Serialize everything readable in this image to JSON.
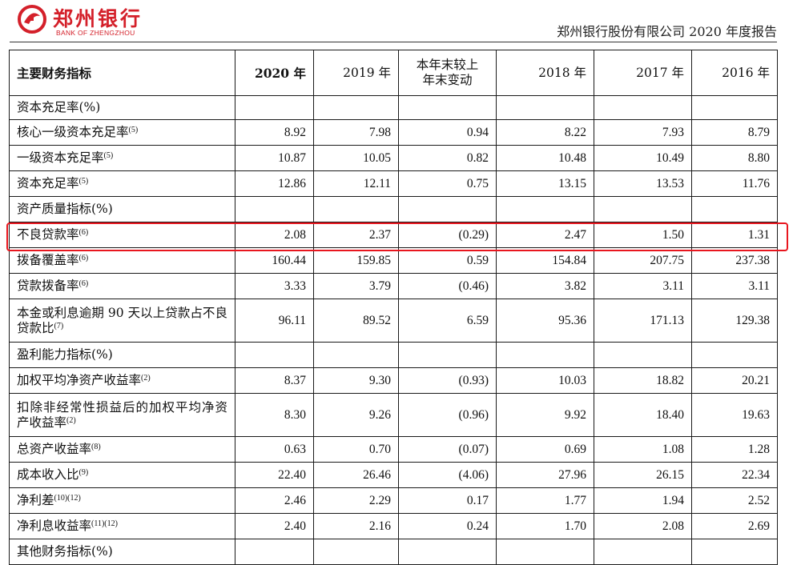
{
  "header": {
    "bank_name_cn": "郑州银行",
    "bank_name_en": "BANK OF ZHENGZHOU",
    "report_title": "郑州银行股份有限公司 2020 年度报告"
  },
  "table": {
    "columns": [
      "主要财务指标",
      "2020 年",
      "2019 年",
      "本年末较上年末变动",
      "2018 年",
      "2017 年",
      "2016 年"
    ],
    "change_col_line1": "本年末较上",
    "change_col_line2": "年末变动",
    "sections": [
      {
        "title": "资本充足率(%)",
        "rows": [
          {
            "label": "核心一级资本充足率",
            "note": "(5)",
            "values": [
              "8.92",
              "7.98",
              "0.94",
              "8.22",
              "7.93",
              "8.79"
            ]
          },
          {
            "label": "一级资本充足率",
            "note": "(5)",
            "values": [
              "10.87",
              "10.05",
              "0.82",
              "10.48",
              "10.49",
              "8.80"
            ]
          },
          {
            "label": "资本充足率",
            "note": "(5)",
            "values": [
              "12.86",
              "12.11",
              "0.75",
              "13.15",
              "13.53",
              "11.76"
            ]
          }
        ]
      },
      {
        "title": "资产质量指标(%)",
        "rows": [
          {
            "label": "不良贷款率",
            "note": "(6)",
            "values": [
              "2.08",
              "2.37",
              "(0.29)",
              "2.47",
              "1.50",
              "1.31"
            ]
          },
          {
            "label": "拨备覆盖率",
            "note": "(6)",
            "values": [
              "160.44",
              "159.85",
              "0.59",
              "154.84",
              "207.75",
              "237.38"
            ]
          },
          {
            "label": "贷款拨备率",
            "note": "(6)",
            "values": [
              "3.33",
              "3.79",
              "(0.46)",
              "3.82",
              "3.11",
              "3.11"
            ]
          },
          {
            "label": "本金或利息逾期 90 天以上贷款占不良贷款比",
            "note": "(7)",
            "values": [
              "96.11",
              "89.52",
              "6.59",
              "95.36",
              "171.13",
              "129.38"
            ]
          }
        ]
      },
      {
        "title": "盈利能力指标(%)",
        "rows": [
          {
            "label": "加权平均净资产收益率",
            "note": "(2)",
            "values": [
              "8.37",
              "9.30",
              "(0.93)",
              "10.03",
              "18.82",
              "20.21"
            ]
          },
          {
            "label": "扣除非经常性损益后的加权平均净资产收益率",
            "note": "(2)",
            "values": [
              "8.30",
              "9.26",
              "(0.96)",
              "9.92",
              "18.40",
              "19.63"
            ]
          },
          {
            "label": "总资产收益率",
            "note": "(8)",
            "values": [
              "0.63",
              "0.70",
              "(0.07)",
              "0.69",
              "1.08",
              "1.28"
            ]
          },
          {
            "label": "成本收入比",
            "note": "(9)",
            "values": [
              "22.40",
              "26.46",
              "(4.06)",
              "27.96",
              "26.15",
              "22.34"
            ]
          },
          {
            "label": "净利差",
            "note": "(10)(12)",
            "values": [
              "2.46",
              "2.29",
              "0.17",
              "1.77",
              "1.94",
              "2.52"
            ]
          },
          {
            "label": "净利息收益率",
            "note": "(11)(12)",
            "values": [
              "2.40",
              "2.16",
              "0.24",
              "1.70",
              "2.08",
              "2.69"
            ]
          }
        ]
      },
      {
        "title": "其他财务指标(%)",
        "rows": []
      }
    ]
  },
  "highlight": {
    "row_label": "不良贷款率",
    "color": "#e8161e"
  },
  "colors": {
    "brand_red": "#d4202a"
  }
}
